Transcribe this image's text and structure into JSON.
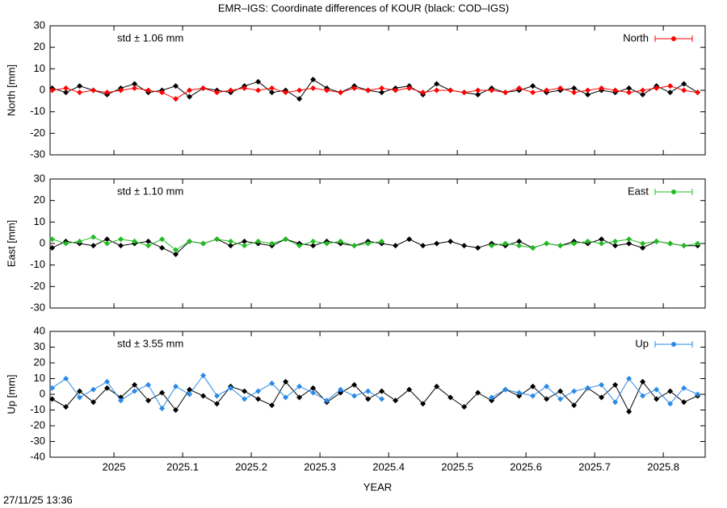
{
  "title": "EMR–IGS: Coordinate differences of KOUR (black: COD–IGS)",
  "timestamp": "27/11/25 13:36",
  "chart_data": [
    {
      "type": "line",
      "ylabel": "North [mm]",
      "annotation": "std ± 1.06 mm",
      "legend": "top-right",
      "xlim": [
        2024.907,
        2025.861
      ],
      "xticks": [
        2025,
        2025.1,
        2025.2,
        2025.3,
        2025.4,
        2025.5,
        2025.6,
        2025.7,
        2025.8
      ],
      "ylim": [
        -30,
        30
      ],
      "yticks": [
        -30,
        -20,
        -10,
        0,
        10,
        20,
        30
      ],
      "x": [
        2024.91,
        2024.93,
        2024.95,
        2024.97,
        2024.99,
        2025.01,
        2025.03,
        2025.05,
        2025.07,
        2025.09,
        2025.11,
        2025.13,
        2025.15,
        2025.17,
        2025.19,
        2025.21,
        2025.23,
        2025.25,
        2025.27,
        2025.29,
        2025.31,
        2025.33,
        2025.35,
        2025.37,
        2025.39,
        2025.41,
        2025.43,
        2025.45,
        2025.47,
        2025.49,
        2025.51,
        2025.53,
        2025.55,
        2025.57,
        2025.59,
        2025.61,
        2025.63,
        2025.65,
        2025.67,
        2025.69,
        2025.71,
        2025.73,
        2025.75,
        2025.77,
        2025.79,
        2025.81,
        2025.83,
        2025.85
      ],
      "series": [
        {
          "color": "#000000",
          "values": [
            1,
            -1,
            2,
            0,
            -2,
            1,
            3,
            -1,
            0,
            2,
            -3,
            1,
            0,
            -1,
            2,
            4,
            -1,
            0,
            -4,
            5,
            1,
            -1,
            2,
            0,
            -1,
            1,
            2,
            -2,
            3,
            0,
            -1,
            -2,
            1,
            -1,
            0,
            2,
            -1,
            0,
            1,
            -2,
            0,
            -1,
            1,
            -2,
            2,
            -1,
            3,
            -1
          ]
        },
        {
          "name": "North",
          "color": "#ff0000",
          "values": [
            0,
            1,
            -1,
            0,
            -1,
            0,
            1,
            0,
            -1,
            -4,
            0,
            1,
            -1,
            0,
            1,
            0,
            1,
            -1,
            0,
            1,
            0,
            -1,
            1,
            0,
            1,
            0,
            1,
            -1,
            0,
            0,
            -1,
            0,
            0,
            -1,
            1,
            -1,
            0,
            1,
            -1,
            0,
            1,
            0,
            -1,
            0,
            1,
            2,
            0,
            -1
          ]
        }
      ]
    },
    {
      "type": "line",
      "ylabel": "East [mm]",
      "annotation": "std ± 1.10 mm",
      "legend": "top-right",
      "xlim": [
        2024.907,
        2025.861
      ],
      "xticks": [
        2025,
        2025.1,
        2025.2,
        2025.3,
        2025.4,
        2025.5,
        2025.6,
        2025.7,
        2025.8
      ],
      "ylim": [
        -30,
        30
      ],
      "yticks": [
        -30,
        -20,
        -10,
        0,
        10,
        20,
        30
      ],
      "x": [
        2024.91,
        2024.93,
        2024.95,
        2024.97,
        2024.99,
        2025.01,
        2025.03,
        2025.05,
        2025.07,
        2025.09,
        2025.11,
        2025.13,
        2025.15,
        2025.17,
        2025.19,
        2025.21,
        2025.23,
        2025.25,
        2025.27,
        2025.29,
        2025.31,
        2025.33,
        2025.35,
        2025.37,
        2025.39,
        2025.41,
        2025.43,
        2025.45,
        2025.47,
        2025.49,
        2025.51,
        2025.53,
        2025.55,
        2025.57,
        2025.59,
        2025.61,
        2025.63,
        2025.65,
        2025.67,
        2025.69,
        2025.71,
        2025.73,
        2025.75,
        2025.77,
        2025.79,
        2025.81,
        2025.83,
        2025.85
      ],
      "series": [
        {
          "color": "#000000",
          "values": [
            -2,
            1,
            0,
            -1,
            2,
            -1,
            0,
            1,
            -2,
            -5,
            1,
            0,
            2,
            -1,
            1,
            0,
            -1,
            2,
            0,
            -1,
            1,
            0,
            -1,
            1,
            0,
            -1,
            2,
            -1,
            0,
            1,
            -1,
            -2,
            0,
            -1,
            1,
            -2,
            0,
            -1,
            1,
            0,
            2,
            -1,
            0,
            -2,
            1,
            0,
            -1,
            -1
          ]
        },
        {
          "name": "East",
          "color": "#22bb22",
          "values": [
            2,
            0,
            1,
            3,
            0,
            2,
            1,
            -1,
            2,
            -3,
            1,
            0,
            2,
            1,
            -1,
            1,
            0,
            2,
            -1,
            1,
            0,
            1,
            -1,
            0,
            1,
            null,
            null,
            null,
            null,
            null,
            null,
            null,
            -1,
            0,
            -1,
            -2,
            0,
            -1,
            0,
            1,
            0,
            1,
            2,
            0,
            1,
            0,
            -1,
            0
          ]
        }
      ]
    },
    {
      "type": "line",
      "ylabel": "Up [mm]",
      "xlabel": "YEAR",
      "annotation": "std ± 3.55 mm",
      "legend": "top-right",
      "xlim": [
        2024.907,
        2025.861
      ],
      "xticks": [
        2025,
        2025.1,
        2025.2,
        2025.3,
        2025.4,
        2025.5,
        2025.6,
        2025.7,
        2025.8
      ],
      "ylim": [
        -40,
        40
      ],
      "yticks": [
        -40,
        -30,
        -20,
        -10,
        0,
        10,
        20,
        30,
        40
      ],
      "x": [
        2024.91,
        2024.93,
        2024.95,
        2024.97,
        2024.99,
        2025.01,
        2025.03,
        2025.05,
        2025.07,
        2025.09,
        2025.11,
        2025.13,
        2025.15,
        2025.17,
        2025.19,
        2025.21,
        2025.23,
        2025.25,
        2025.27,
        2025.29,
        2025.31,
        2025.33,
        2025.35,
        2025.37,
        2025.39,
        2025.41,
        2025.43,
        2025.45,
        2025.47,
        2025.49,
        2025.51,
        2025.53,
        2025.55,
        2025.57,
        2025.59,
        2025.61,
        2025.63,
        2025.65,
        2025.67,
        2025.69,
        2025.71,
        2025.73,
        2025.75,
        2025.77,
        2025.79,
        2025.81,
        2025.83,
        2025.85
      ],
      "series": [
        {
          "color": "#000000",
          "values": [
            -3,
            -8,
            2,
            -5,
            4,
            -2,
            6,
            -4,
            1,
            -10,
            3,
            -1,
            -6,
            5,
            2,
            -3,
            -7,
            8,
            -2,
            4,
            -5,
            1,
            6,
            -3,
            2,
            -4,
            3,
            -6,
            5,
            -2,
            -8,
            1,
            -4,
            3,
            -1,
            5,
            -3,
            2,
            -7,
            4,
            -2,
            6,
            -11,
            8,
            -3,
            2,
            -5,
            -1
          ]
        },
        {
          "name": "Up",
          "color": "#2a8ae8",
          "values": [
            4,
            10,
            -2,
            3,
            8,
            -4,
            2,
            6,
            -9,
            5,
            0,
            12,
            -1,
            4,
            -3,
            2,
            7,
            -2,
            5,
            1,
            -4,
            3,
            -1,
            2,
            -3,
            null,
            null,
            null,
            null,
            null,
            null,
            null,
            -2,
            3,
            1,
            -1,
            5,
            -3,
            2,
            4,
            6,
            -5,
            10,
            -1,
            3,
            -6,
            4,
            0
          ]
        }
      ]
    }
  ]
}
